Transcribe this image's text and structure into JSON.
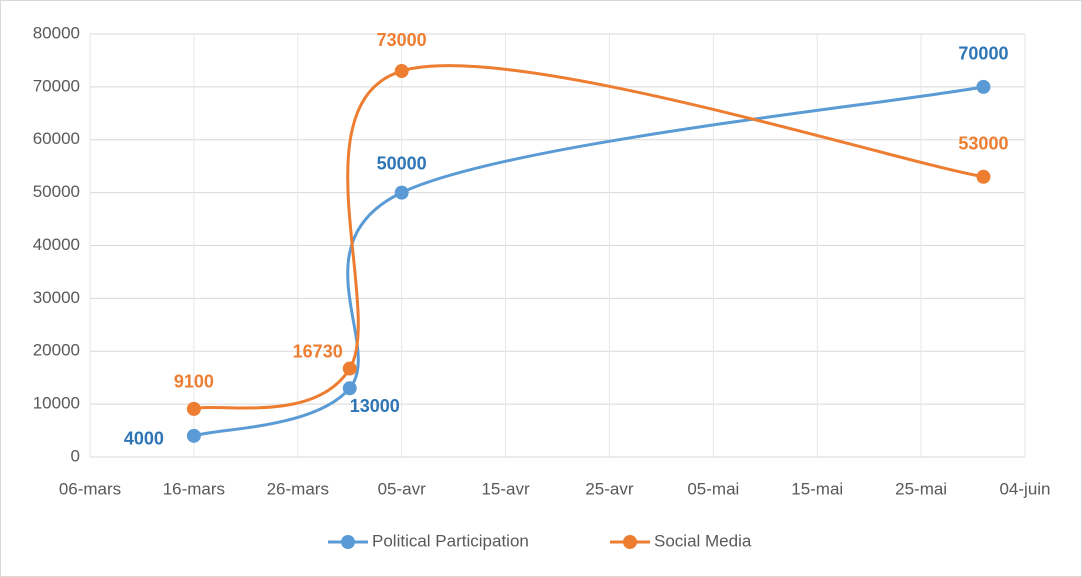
{
  "chart_data": {
    "type": "line",
    "xticks": [
      {
        "value": 65,
        "label": "06-mars"
      },
      {
        "value": 75,
        "label": "16-mars"
      },
      {
        "value": 85,
        "label": "26-mars"
      },
      {
        "value": 95,
        "label": "05-avr"
      },
      {
        "value": 105,
        "label": "15-avr"
      },
      {
        "value": 115,
        "label": "25-avr"
      },
      {
        "value": 125,
        "label": "05-mai"
      },
      {
        "value": 135,
        "label": "15-mai"
      },
      {
        "value": 145,
        "label": "25-mai"
      },
      {
        "value": 155,
        "label": "04-juin"
      }
    ],
    "xlim": [
      65,
      155
    ],
    "ylim": [
      0,
      80000
    ],
    "yticks": [
      0,
      10000,
      20000,
      30000,
      40000,
      50000,
      60000,
      70000,
      80000
    ],
    "grid": true,
    "legend": "bottom",
    "series": [
      {
        "name": "Political Participation",
        "color": "#5b9bd5",
        "label_color": "#2e75b6",
        "x": [
          75,
          90,
          95,
          151
        ],
        "values": [
          4000,
          13000,
          50000,
          70000
        ]
      },
      {
        "name": "Social Media",
        "color": "#ed7d31",
        "label_color": "#ed7d31",
        "x": [
          75,
          90,
          95,
          151
        ],
        "values": [
          9100,
          16730,
          73000,
          53000
        ]
      }
    ]
  }
}
